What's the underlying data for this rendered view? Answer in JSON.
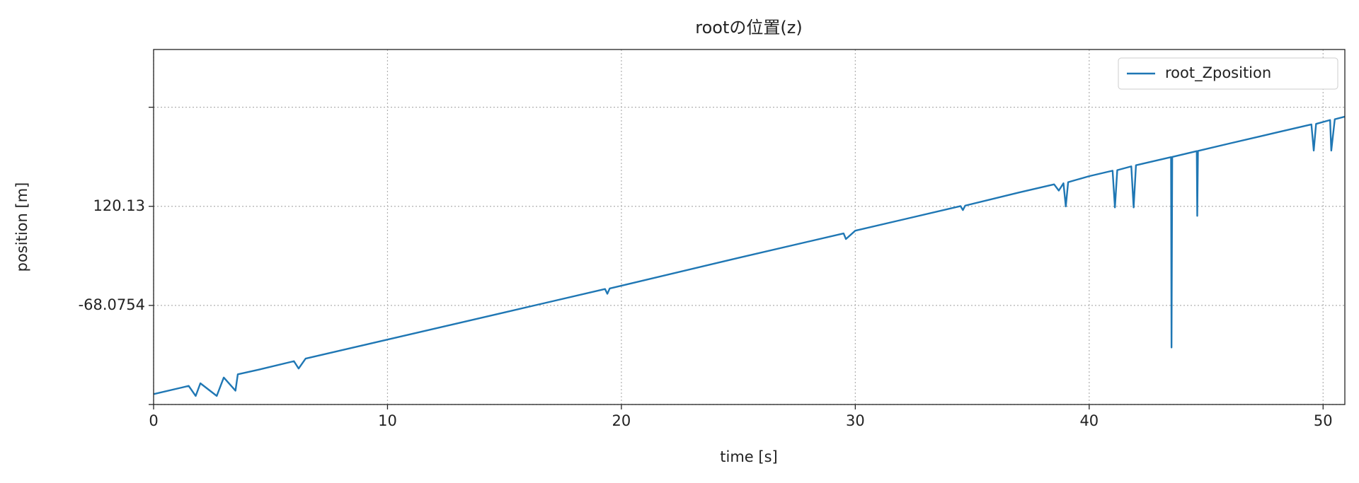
{
  "chart_data": {
    "type": "line",
    "title": "rootの位置(z)",
    "x_label": "time [s]",
    "y_label": "position [m]",
    "xlim": [
      0,
      50.93
    ],
    "xticks": [
      0,
      10,
      20,
      30,
      40,
      50
    ],
    "ylim": [
      -256.28,
      417.99
    ],
    "yticks": [
      {
        "value": -256.28,
        "label": null
      },
      {
        "value": -68.0754,
        "label": "-68.0754"
      },
      {
        "value": 120.13,
        "label": "120.13"
      },
      {
        "value": 308.34,
        "label": null
      }
    ],
    "grid": true,
    "legend": "upper right",
    "x": [
      0,
      1.5,
      1.8,
      2.0,
      2.7,
      3.0,
      3.5,
      3.6,
      4.5,
      6,
      6.2,
      6.5,
      10,
      15,
      19.3,
      19.4,
      19.5,
      25,
      29.5,
      29.6,
      30,
      34.5,
      34.6,
      34.7,
      37,
      38.5,
      38.7,
      38.9,
      39.0,
      39.1,
      40,
      41.0,
      41.1,
      41.2,
      41.8,
      41.9,
      42.0,
      43.5,
      43.52,
      43.55,
      44.6,
      44.62,
      44.65,
      46,
      48,
      49.5,
      49.6,
      49.7,
      50.3,
      50.35,
      50.5,
      50.93
    ],
    "series": [
      {
        "name": "root_Zposition",
        "color": "#1f77b4",
        "values": [
          -236.6,
          -221,
          -240,
          -216,
          -240,
          -205,
          -230,
          -199,
          -190,
          -174,
          -188,
          -169,
          -133,
          -81.4,
          -36.9,
          -46,
          -35.9,
          22.2,
          68.7,
          58,
          73.9,
          120.5,
          113,
          121.5,
          146.4,
          161.9,
          150,
          164,
          120,
          166,
          177.4,
          187.8,
          118,
          188.8,
          196,
          118,
          198.1,
          213.6,
          -148,
          213.9,
          225,
          102,
          225.3,
          239.5,
          260.2,
          275.7,
          226,
          276.7,
          284,
          226,
          285.5,
          290.5
        ]
      }
    ]
  }
}
